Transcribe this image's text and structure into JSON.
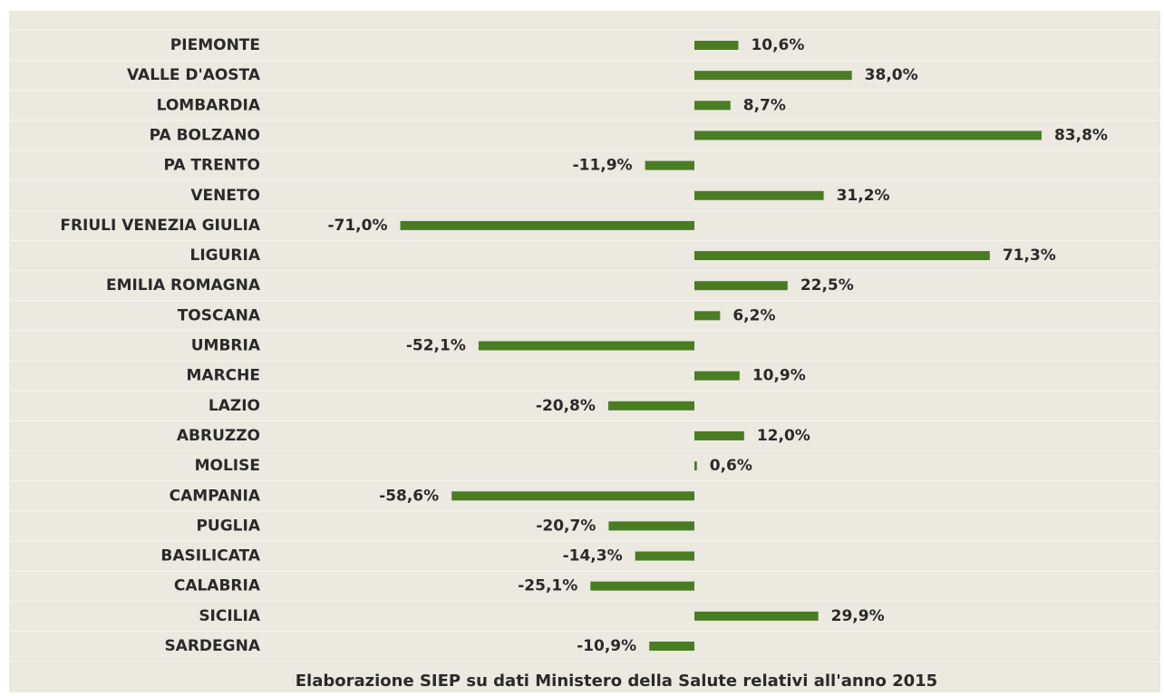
{
  "chart_data": {
    "type": "barh",
    "caption": "Elaborazione SIEP su dati Ministero della Salute relativi all'anno 2015",
    "categories": [
      "PIEMONTE",
      "VALLE D'AOSTA",
      "LOMBARDIA",
      "PA BOLZANO",
      "PA TRENTO",
      "VENETO",
      "FRIULI VENEZIA GIULIA",
      "LIGURIA",
      "EMILIA ROMAGNA",
      "TOSCANA",
      "UMBRIA",
      "MARCHE",
      "LAZIO",
      "ABRUZZO",
      "MOLISE",
      "CAMPANIA",
      "PUGLIA",
      "BASILICATA",
      "CALABRIA",
      "SICILIA",
      "SARDEGNA"
    ],
    "values": [
      10.6,
      38.0,
      8.7,
      83.8,
      -11.9,
      31.2,
      -71.0,
      71.3,
      22.5,
      6.2,
      -52.1,
      10.9,
      -20.8,
      12.0,
      0.6,
      -58.6,
      -20.7,
      -14.3,
      -25.1,
      29.9,
      -10.9
    ],
    "value_labels": [
      "10,6%",
      "38,0%",
      "8,7%",
      "83,8%",
      "-11,9%",
      "31,2%",
      "-71,0%",
      "71,3%",
      "22,5%",
      "6,2%",
      "-52,1%",
      "10,9%",
      "-20,8%",
      "12,0%",
      "0,6%",
      "-58,6%",
      "-20,7%",
      "-14,3%",
      "-25,1%",
      "29,9%",
      "-10,9%"
    ],
    "color": "#4a7d23",
    "xlim": [
      -100,
      100
    ]
  }
}
